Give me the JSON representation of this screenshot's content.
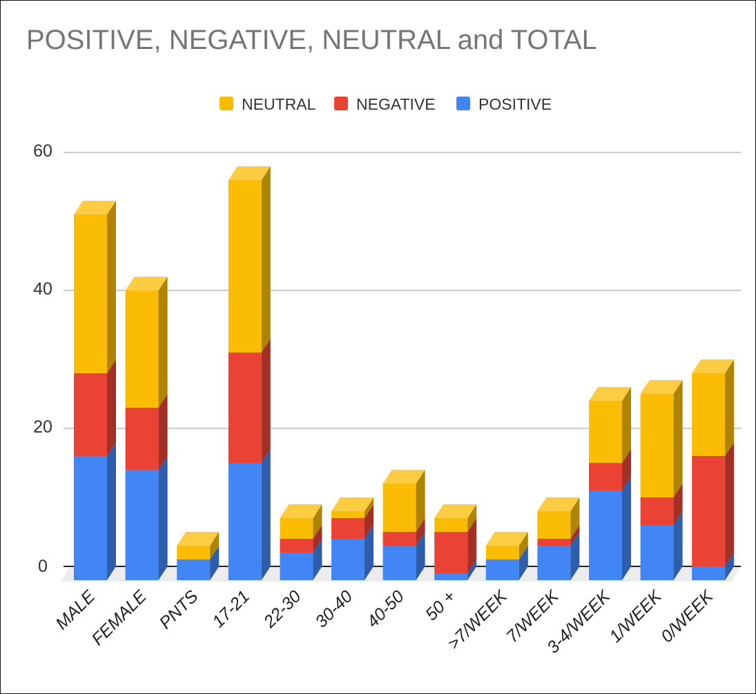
{
  "chart_data": {
    "type": "bar",
    "stacked": true,
    "three_d": true,
    "title": "POSITIVE, NEGATIVE, NEUTRAL and TOTAL",
    "categories": [
      "MALE",
      "FEMALE",
      "PNTS",
      "17-21",
      "22-30",
      "30-40",
      "40-50",
      "50 +",
      ">7/WEEK",
      "7/WEEK",
      "3-4/WEEK",
      "1/WEEK",
      "0/WEEK"
    ],
    "series": [
      {
        "name": "POSITIVE",
        "color": "#4285f4",
        "values": [
          18,
          16,
          3,
          17,
          4,
          6,
          5,
          1,
          3,
          5,
          13,
          8,
          2
        ]
      },
      {
        "name": "NEGATIVE",
        "color": "#ea4335",
        "values": [
          12,
          9,
          0,
          16,
          2,
          3,
          2,
          6,
          0,
          1,
          4,
          4,
          16
        ]
      },
      {
        "name": "NEUTRAL",
        "color": "#fbbc04",
        "values": [
          23,
          17,
          2,
          25,
          3,
          1,
          7,
          2,
          2,
          4,
          9,
          15,
          12
        ]
      }
    ],
    "legend_order": [
      "NEUTRAL",
      "NEGATIVE",
      "POSITIVE"
    ],
    "legend_position": "top",
    "ylim": [
      0,
      60
    ],
    "yticks": [
      "0",
      "20",
      "40",
      "60"
    ],
    "grid": true,
    "xlabel": "",
    "ylabel": ""
  }
}
